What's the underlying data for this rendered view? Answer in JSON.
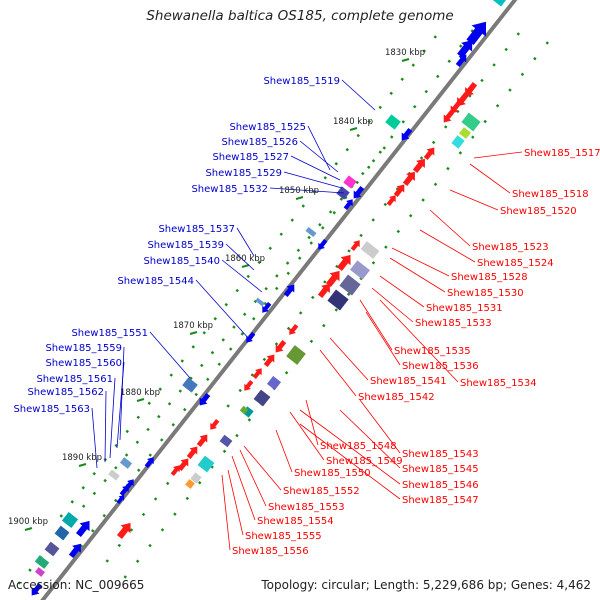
{
  "title": "Shewanella baltica OS185, complete genome",
  "accession": "Accession: NC_009665",
  "summary": "Topology: circular; Length: 5,229,686 bp; Genes: 4,462",
  "colors": {
    "left_label": "#0000cc",
    "right_label": "#ff0000",
    "backbone": "#7a7a7a",
    "tick": "#1a8a1a",
    "ruler_text": "#222222"
  },
  "ruler": [
    {
      "label": "1830 kbp"
    },
    {
      "label": "1840 kbp"
    },
    {
      "label": "1850 kbp"
    },
    {
      "label": "1860 kbp"
    },
    {
      "label": "1870 kbp"
    },
    {
      "label": "1880 kbp"
    },
    {
      "label": "1890 kbp"
    },
    {
      "label": "1900 kbp"
    }
  ],
  "left_labels": [
    {
      "text": "Shew185_1519"
    },
    {
      "text": "Shew185_1525"
    },
    {
      "text": "Shew185_1526"
    },
    {
      "text": "Shew185_1527"
    },
    {
      "text": "Shew185_1529"
    },
    {
      "text": "Shew185_1532"
    },
    {
      "text": "Shew185_1537"
    },
    {
      "text": "Shew185_1539"
    },
    {
      "text": "Shew185_1540"
    },
    {
      "text": "Shew185_1544"
    },
    {
      "text": "Shew185_1551"
    },
    {
      "text": "Shew185_1559"
    },
    {
      "text": "Shew185_1560"
    },
    {
      "text": "Shew185_1561"
    },
    {
      "text": "Shew185_1562"
    },
    {
      "text": "Shew185_1563"
    }
  ],
  "right_labels": [
    {
      "text": "Shew185_1517"
    },
    {
      "text": "Shew185_1518"
    },
    {
      "text": "Shew185_1520"
    },
    {
      "text": "Shew185_1523"
    },
    {
      "text": "Shew185_1524"
    },
    {
      "text": "Shew185_1528"
    },
    {
      "text": "Shew185_1530"
    },
    {
      "text": "Shew185_1531"
    },
    {
      "text": "Shew185_1533"
    },
    {
      "text": "Shew185_1535"
    },
    {
      "text": "Shew185_1536"
    },
    {
      "text": "Shew185_1534"
    },
    {
      "text": "Shew185_1541"
    },
    {
      "text": "Shew185_1542"
    },
    {
      "text": "Shew185_1543"
    },
    {
      "text": "Shew185_1548"
    },
    {
      "text": "Shew185_1545"
    },
    {
      "text": "Shew185_1549"
    },
    {
      "text": "Shew185_1546"
    },
    {
      "text": "Shew185_1550"
    },
    {
      "text": "Shew185_1547"
    },
    {
      "text": "Shew185_1552"
    },
    {
      "text": "Shew185_1553"
    },
    {
      "text": "Shew185_1554"
    },
    {
      "text": "Shew185_1555"
    },
    {
      "text": "Shew185_1556"
    }
  ]
}
